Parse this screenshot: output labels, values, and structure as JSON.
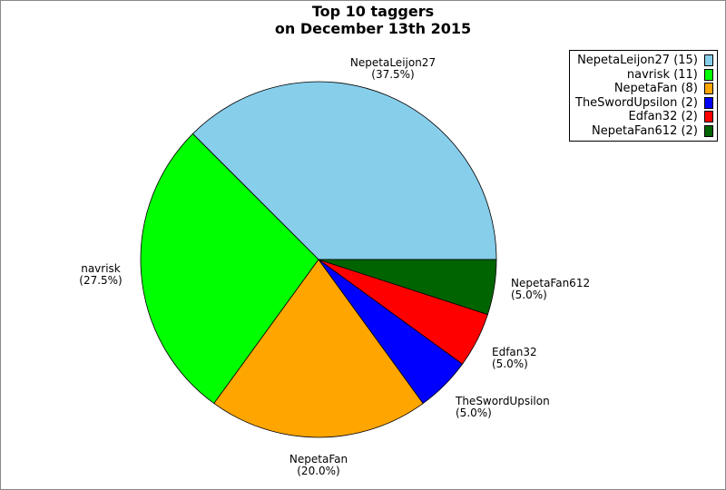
{
  "chart_data": {
    "type": "pie",
    "title_line1": "Top 10 taggers",
    "title_line2": "on December 13th 2015",
    "total": 40,
    "slices": [
      {
        "name": "NepetaLeijon27",
        "value": 15,
        "percent": "(37.5%)",
        "legend": "NepetaLeijon27 (15)",
        "color": "#87ceeb"
      },
      {
        "name": "navrisk",
        "value": 11,
        "percent": "(27.5%)",
        "legend": "navrisk (11)",
        "color": "#00ff00"
      },
      {
        "name": "NepetaFan",
        "value": 8,
        "percent": "(20.0%)",
        "legend": "NepetaFan (8)",
        "color": "#ffa500"
      },
      {
        "name": "TheSwordUpsilon",
        "value": 2,
        "percent": "(5.0%)",
        "legend": "TheSwordUpsilon (2)",
        "color": "#0000ff"
      },
      {
        "name": "Edfan32",
        "value": 2,
        "percent": "(5.0%)",
        "legend": "Edfan32 (2)",
        "color": "#ff0000"
      },
      {
        "name": "NepetaFan612",
        "value": 2,
        "percent": "(5.0%)",
        "legend": "NepetaFan612 (2)",
        "color": "#006400"
      }
    ],
    "start_angle_deg": 0,
    "direction": "counterclockwise",
    "legend_position": "top-right"
  }
}
